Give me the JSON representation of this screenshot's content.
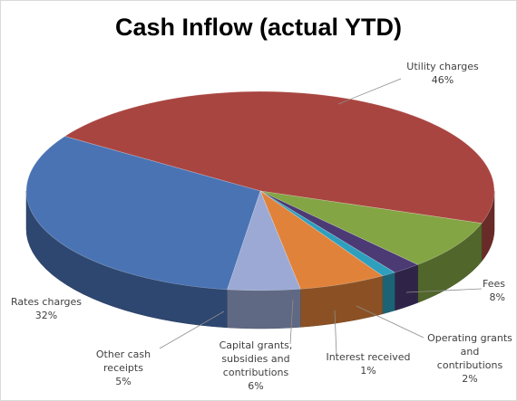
{
  "chart_data": {
    "type": "pie",
    "title": "Cash Inflow (actual YTD)",
    "slices": [
      {
        "label": "Utility charges",
        "value": 46,
        "value_label": "46%",
        "color": "#a94540"
      },
      {
        "label": "Fees",
        "value": 8,
        "value_label": "8%",
        "color": "#83a543"
      },
      {
        "label": "Operating grants and contributions",
        "value": 2,
        "value_label": "2%",
        "color": "#4b3a74"
      },
      {
        "label": "Interest received",
        "value": 1,
        "value_label": "1%",
        "color": "#2f9fbe"
      },
      {
        "label": "Capital grants, subsidies and contributions",
        "value": 6,
        "value_label": "6%",
        "color": "#e0823a"
      },
      {
        "label": "Other cash receipts",
        "value": 5,
        "value_label": "5%",
        "color": "#9ba9d4"
      },
      {
        "label": "Rates charges",
        "value": 32,
        "value_label": "32%",
        "color": "#4a73b4"
      }
    ],
    "style": "3d-pie",
    "legend": "none"
  }
}
